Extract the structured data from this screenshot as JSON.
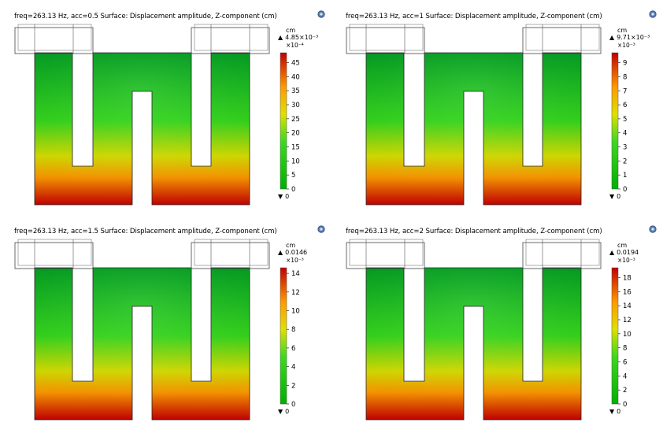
{
  "panels": [
    {
      "title": "freq=263.13 Hz, acc=0.5  Surface: Displacement amplitude, Z-component (cm)",
      "unit": "cm",
      "max_label": "4.85×10⁻³",
      "exp_label": "×10⁻⁴",
      "min_label": "0"
    },
    {
      "title": "freq=263.13 Hz, acc=1  Surface: Displacement amplitude, Z-component (cm)",
      "unit": "cm",
      "max_label": "9.71×10⁻³",
      "exp_label": "×10⁻³",
      "min_label": "0"
    },
    {
      "title": "freq=263.13 Hz, acc=1.5  Surface: Displacement amplitude, Z-component (cm)",
      "unit": "cm",
      "max_label": "0.0146",
      "exp_label": "×10⁻³",
      "min_label": "0"
    },
    {
      "title": "freq=263.13 Hz, acc=2  Surface: Displacement amplitude, Z-component (cm)",
      "unit": "cm",
      "max_label": "0.0194",
      "exp_label": "×10⁻³",
      "min_label": "0"
    }
  ],
  "icons": {
    "corner": "camera-globe-icon",
    "max_marker": "triangle-up-icon",
    "min_marker": "triangle-down-icon"
  },
  "colors": {
    "low": "#00a000",
    "mid": "#e8e800",
    "high": "#cc0000",
    "outline": "#333333"
  },
  "chart_data": [
    {
      "type": "heatmap",
      "title": "freq=263.13 Hz, acc=0.5  Surface: Displacement amplitude, Z-component (cm)",
      "colorbar": {
        "unit": "cm",
        "ticks": [
          0,
          5,
          10,
          15,
          20,
          25,
          30,
          35,
          40,
          45
        ],
        "range": [
          0,
          48.5
        ],
        "scale_factor": "×10⁻⁴",
        "max": "4.85×10⁻³",
        "min": 0
      }
    },
    {
      "type": "heatmap",
      "title": "freq=263.13 Hz, acc=1  Surface: Displacement amplitude, Z-component (cm)",
      "colorbar": {
        "unit": "cm",
        "ticks": [
          0,
          1,
          2,
          3,
          4,
          5,
          6,
          7,
          8,
          9
        ],
        "range": [
          0,
          9.71
        ],
        "scale_factor": "×10⁻³",
        "max": "9.71×10⁻³",
        "min": 0
      }
    },
    {
      "type": "heatmap",
      "title": "freq=263.13 Hz, acc=1.5  Surface: Displacement amplitude, Z-component (cm)",
      "colorbar": {
        "unit": "cm",
        "ticks": [
          0,
          2,
          4,
          6,
          8,
          10,
          12,
          14
        ],
        "range": [
          0,
          14.6
        ],
        "scale_factor": "×10⁻³",
        "max": "0.0146",
        "min": 0
      }
    },
    {
      "type": "heatmap",
      "title": "freq=263.13 Hz, acc=2  Surface: Displacement amplitude, Z-component (cm)",
      "colorbar": {
        "unit": "cm",
        "ticks": [
          0,
          2,
          4,
          6,
          8,
          10,
          12,
          14,
          16,
          18
        ],
        "range": [
          0,
          19.4
        ],
        "scale_factor": "×10⁻³",
        "max": "0.0194",
        "min": 0
      }
    }
  ]
}
